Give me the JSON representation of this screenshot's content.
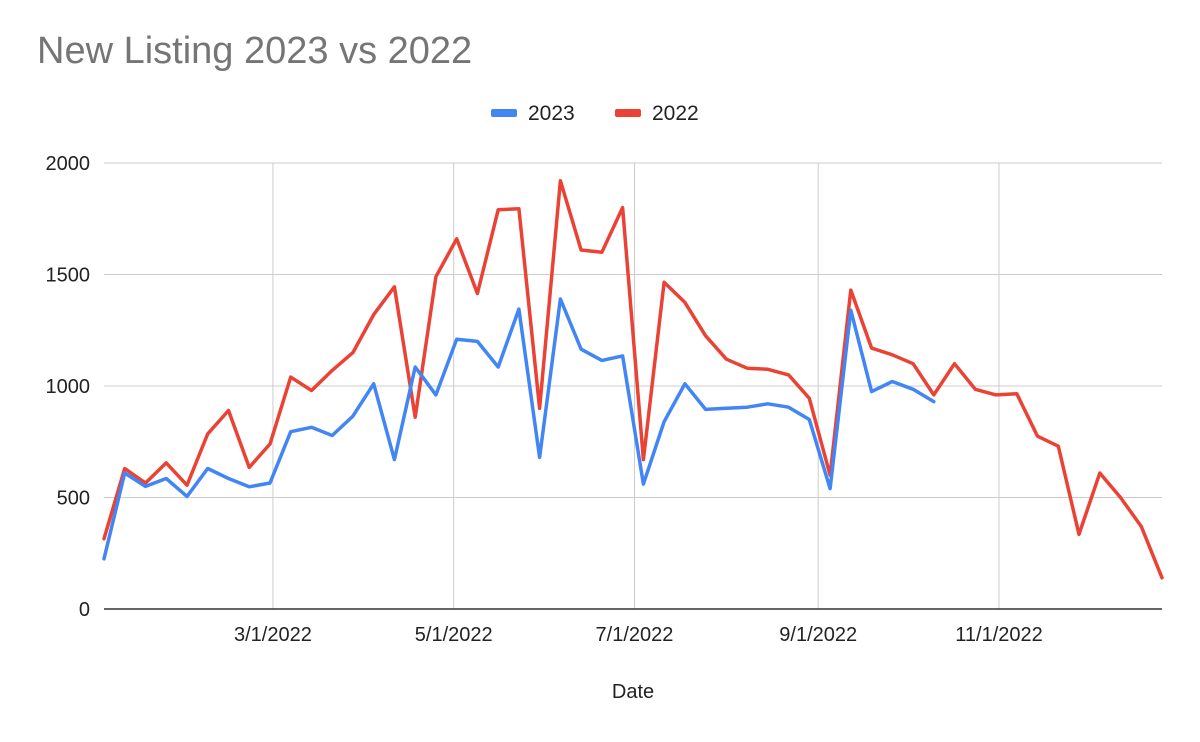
{
  "chart_data": {
    "type": "line",
    "title": "New Listing 2023 vs 2022",
    "xlabel": "Date",
    "ylabel": "",
    "ylim": [
      0,
      2000
    ],
    "y_ticks": [
      0,
      500,
      1000,
      1500,
      2000
    ],
    "x_range": [
      "2022-01-03",
      "2022-12-26"
    ],
    "x_tick_labels": [
      "3/1/2022",
      "5/1/2022",
      "7/1/2022",
      "9/1/2022",
      "11/1/2022"
    ],
    "x_tick_dates": [
      "2022-03-01",
      "2022-05-01",
      "2022-07-01",
      "2022-09-01",
      "2022-11-01"
    ],
    "grid": true,
    "legend_position": "top",
    "series": [
      {
        "name": "2023",
        "color": "#4285f4",
        "x": [
          "2022-01-03",
          "2022-01-10",
          "2022-01-17",
          "2022-01-24",
          "2022-01-31",
          "2022-02-07",
          "2022-02-14",
          "2022-02-21",
          "2022-02-28",
          "2022-03-07",
          "2022-03-14",
          "2022-03-21",
          "2022-03-28",
          "2022-04-04",
          "2022-04-11",
          "2022-04-18",
          "2022-04-25",
          "2022-05-02",
          "2022-05-09",
          "2022-05-16",
          "2022-05-23",
          "2022-05-30",
          "2022-06-06",
          "2022-06-13",
          "2022-06-20",
          "2022-06-27",
          "2022-07-04",
          "2022-07-11",
          "2022-07-18",
          "2022-07-25",
          "2022-08-01",
          "2022-08-08",
          "2022-08-15",
          "2022-08-22",
          "2022-08-29",
          "2022-09-05",
          "2022-09-12",
          "2022-09-19",
          "2022-09-26",
          "2022-10-03",
          "2022-10-10"
        ],
        "values": [
          225,
          610,
          550,
          585,
          505,
          630,
          585,
          548,
          565,
          795,
          815,
          778,
          865,
          1010,
          670,
          1085,
          960,
          1210,
          1200,
          1085,
          1345,
          680,
          1390,
          1165,
          1115,
          1135,
          560,
          840,
          1010,
          895,
          900,
          905,
          920,
          905,
          850,
          540,
          1340,
          975,
          1020,
          985,
          930
        ]
      },
      {
        "name": "2022",
        "color": "#ea4335",
        "x": [
          "2022-01-03",
          "2022-01-10",
          "2022-01-17",
          "2022-01-24",
          "2022-01-31",
          "2022-02-07",
          "2022-02-14",
          "2022-02-21",
          "2022-02-28",
          "2022-03-07",
          "2022-03-14",
          "2022-03-21",
          "2022-03-28",
          "2022-04-04",
          "2022-04-11",
          "2022-04-18",
          "2022-04-25",
          "2022-05-02",
          "2022-05-09",
          "2022-05-16",
          "2022-05-23",
          "2022-05-30",
          "2022-06-06",
          "2022-06-13",
          "2022-06-20",
          "2022-06-27",
          "2022-07-04",
          "2022-07-11",
          "2022-07-18",
          "2022-07-25",
          "2022-08-01",
          "2022-08-08",
          "2022-08-15",
          "2022-08-22",
          "2022-08-29",
          "2022-09-05",
          "2022-09-12",
          "2022-09-19",
          "2022-09-26",
          "2022-10-03",
          "2022-10-10",
          "2022-10-17",
          "2022-10-24",
          "2022-10-31",
          "2022-11-07",
          "2022-11-14",
          "2022-11-21",
          "2022-11-28",
          "2022-12-05",
          "2022-12-12",
          "2022-12-19",
          "2022-12-26"
        ],
        "values": [
          315,
          630,
          565,
          655,
          555,
          785,
          890,
          635,
          740,
          1040,
          980,
          1070,
          1150,
          1320,
          1445,
          860,
          1490,
          1660,
          1415,
          1790,
          1795,
          900,
          1920,
          1610,
          1600,
          1800,
          670,
          1465,
          1375,
          1225,
          1120,
          1080,
          1075,
          1050,
          945,
          600,
          1430,
          1170,
          1140,
          1100,
          960,
          1100,
          985,
          960,
          965,
          775,
          730,
          335,
          610,
          500,
          370,
          140
        ]
      }
    ]
  }
}
